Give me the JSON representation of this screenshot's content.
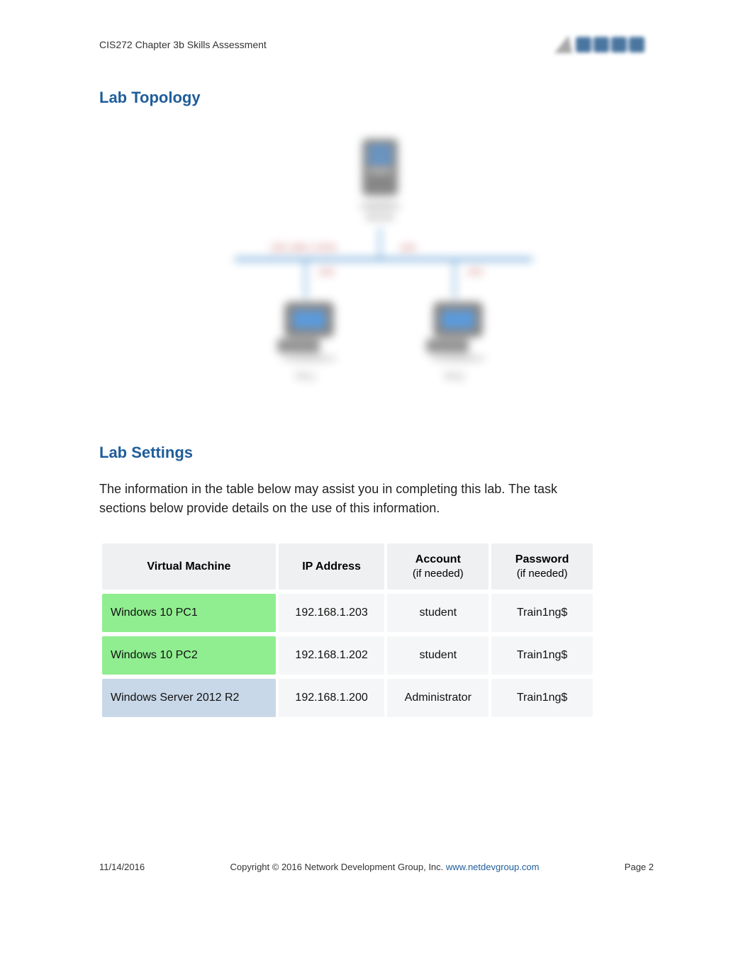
{
  "header": {
    "title": "CIS272 Chapter 3b Skills Assessment"
  },
  "sections": {
    "topology_heading": "Lab Topology",
    "settings_heading": "Lab Settings",
    "description": "The information in the table below may assist you in completing this lab. The task sections below provide details on the use of this information."
  },
  "topology": {
    "server_label": "Server",
    "network_label": "192.168.1.0/24",
    "server_ip": ".200",
    "pc1_ip": ".203",
    "pc2_ip": ".202",
    "pc1_label": "PC1",
    "pc2_label": "PC2",
    "line_color": "#5b9bd5",
    "label_color": "#c0504d",
    "device_fill": "#7a7a7a",
    "device_accent": "#4a90d9"
  },
  "table": {
    "headers": {
      "vm": "Virtual Machine",
      "ip": "IP Address",
      "account": "Account",
      "account_sub": "(if needed)",
      "password": "Password",
      "password_sub": "(if needed)"
    },
    "rows": [
      {
        "vm": "Windows 10 PC1",
        "ip": "192.168.1.203",
        "account": "student",
        "password": "Train1ng$",
        "row_class": "row-green"
      },
      {
        "vm": "Windows 10 PC2",
        "ip": "192.168.1.202",
        "account": "student",
        "password": "Train1ng$",
        "row_class": "row-green"
      },
      {
        "vm": "Windows Server 2012 R2",
        "ip": "192.168.1.200",
        "account": "Administrator",
        "password": "Train1ng$",
        "row_class": "row-blue"
      }
    ],
    "colors": {
      "header_bg": "#eef0f2",
      "cell_bg": "#f5f6f7",
      "green_bg": "#90ee90",
      "blue_bg": "#c9d8e8"
    }
  },
  "footer": {
    "date": "11/14/2016",
    "copyright": "Copyright © 2016 Network Development Group, Inc. ",
    "link_text": "www.netdevgroup.com",
    "page": "Page 2"
  }
}
